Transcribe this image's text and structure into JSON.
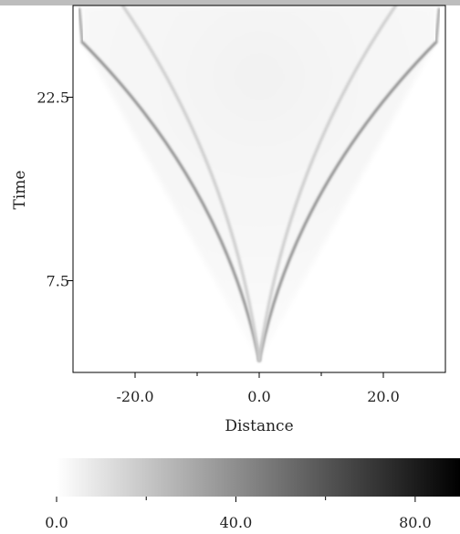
{
  "chart_data": {
    "type": "heatmap",
    "title": "",
    "xlabel": "Distance",
    "ylabel": "Time",
    "xlim": [
      -30,
      30
    ],
    "ylim": [
      0,
      30
    ],
    "x_ticks": [
      -20.0,
      0.0,
      20.0
    ],
    "x_tick_labels": [
      "-20.0",
      "0.0",
      "20.0"
    ],
    "y_ticks": [
      7.5,
      22.5
    ],
    "y_tick_labels": [
      "7.5",
      "22.5"
    ],
    "colormap": "white-to-black",
    "color_min": "#ffffff",
    "color_max": "#000000",
    "colorbar": {
      "range": [
        0,
        90
      ],
      "ticks": [
        0.0,
        40.0,
        80.0
      ],
      "tick_labels": [
        "0.0",
        "40.0",
        "80.0"
      ]
    },
    "features": [
      {
        "description": "outer wavefront",
        "x_start": 0,
        "t_start": 1,
        "x_end": 28.5,
        "t_end": 27,
        "intensity": 45
      },
      {
        "description": "inner wavefront",
        "x_start": 0,
        "t_start": 1,
        "x_end": 22,
        "t_end": 30,
        "intensity": 18
      }
    ],
    "grid": false
  }
}
